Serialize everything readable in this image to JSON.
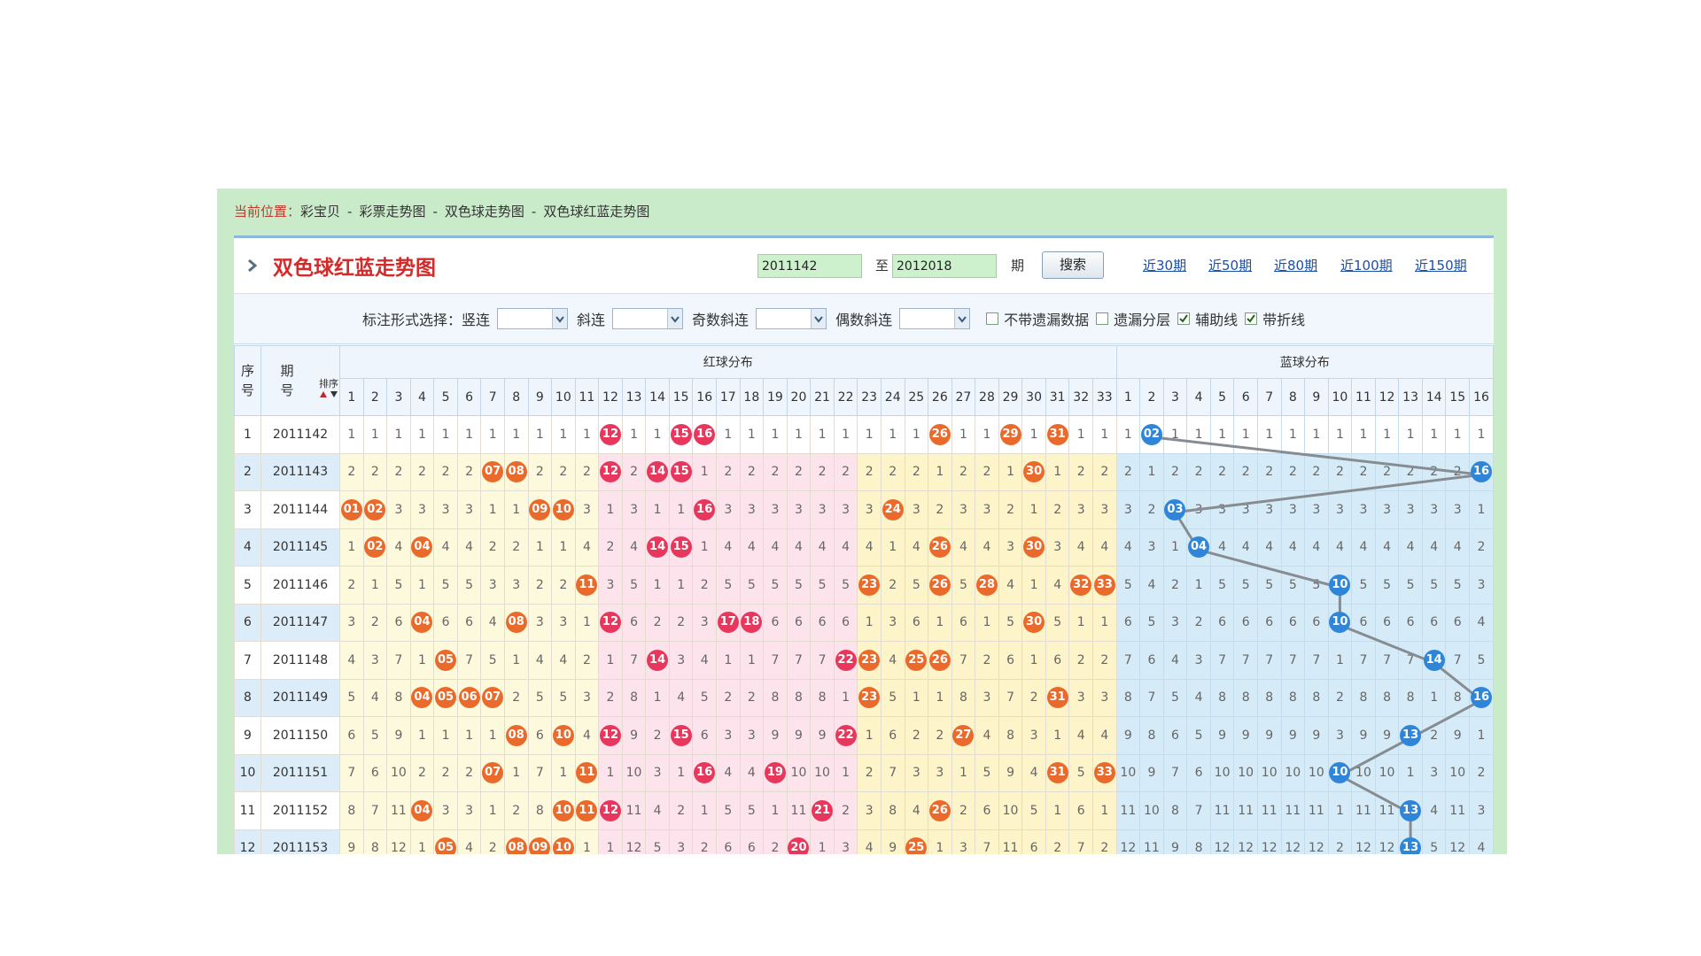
{
  "breadcrumb": {
    "label": "当前位置：",
    "separator": "-",
    "items": [
      "彩宝贝",
      "彩票走势图",
      "双色球走势图",
      "双色球红蓝走势图"
    ]
  },
  "header": {
    "title": "双色球红蓝走势图",
    "from": "2011142",
    "to_label": "至",
    "to": "2012018",
    "unit": "期",
    "search": "搜索",
    "ranges": [
      "近30期",
      "近50期",
      "近80期",
      "近100期",
      "近150期"
    ]
  },
  "filters": {
    "label": "标注形式选择：",
    "selects": [
      "竖连",
      "斜连",
      "奇数斜连",
      "偶数斜连"
    ],
    "checkboxes": [
      {
        "label": "不带遗漏数据",
        "checked": false
      },
      {
        "label": "遗漏分层",
        "checked": false
      },
      {
        "label": "辅助线",
        "checked": true
      },
      {
        "label": "带折线",
        "checked": true
      }
    ]
  },
  "table": {
    "seq_header": "序号",
    "issue_header": "期号",
    "sort": "排序",
    "red_header": "红球分布",
    "blue_header": "蓝球分布",
    "red_columns": [
      1,
      2,
      3,
      4,
      5,
      6,
      7,
      8,
      9,
      10,
      11,
      12,
      13,
      14,
      15,
      16,
      17,
      18,
      19,
      20,
      21,
      22,
      23,
      24,
      25,
      26,
      27,
      28,
      29,
      30,
      31,
      32,
      33
    ],
    "blue_columns": [
      1,
      2,
      3,
      4,
      5,
      6,
      7,
      8,
      9,
      10,
      11,
      12,
      13,
      14,
      15,
      16
    ],
    "rows": [
      {
        "seq": 1,
        "issue": "2011142",
        "red": [
          1,
          1,
          1,
          1,
          1,
          1,
          1,
          1,
          1,
          1,
          1,
          {
            "ball": "12"
          },
          1,
          1,
          {
            "ball": "15"
          },
          {
            "ball": "16"
          },
          1,
          1,
          1,
          1,
          1,
          1,
          1,
          1,
          1,
          {
            "ball": "26"
          },
          1,
          1,
          {
            "ball": "29"
          },
          1,
          {
            "ball": "31"
          },
          1,
          1
        ],
        "blue": [
          1,
          {
            "ball": "02"
          },
          1,
          1,
          1,
          1,
          1,
          1,
          1,
          1,
          1,
          1,
          1,
          1,
          1,
          1
        ]
      },
      {
        "seq": 2,
        "issue": "2011143",
        "red": [
          2,
          2,
          2,
          2,
          2,
          2,
          {
            "ball": "07"
          },
          {
            "ball": "08"
          },
          2,
          2,
          2,
          {
            "ball": "12"
          },
          2,
          {
            "ball": "14"
          },
          {
            "ball": "15"
          },
          1,
          2,
          2,
          2,
          2,
          2,
          2,
          2,
          2,
          2,
          1,
          2,
          2,
          1,
          {
            "ball": "30"
          },
          1,
          2,
          2
        ],
        "blue": [
          2,
          1,
          2,
          2,
          2,
          2,
          2,
          2,
          2,
          2,
          2,
          2,
          2,
          2,
          2,
          {
            "ball": "16"
          }
        ]
      },
      {
        "seq": 3,
        "issue": "2011144",
        "red": [
          {
            "ball": "01"
          },
          {
            "ball": "02"
          },
          3,
          3,
          3,
          3,
          1,
          1,
          {
            "ball": "09"
          },
          {
            "ball": "10"
          },
          3,
          1,
          3,
          1,
          1,
          {
            "ball": "16"
          },
          3,
          3,
          3,
          3,
          3,
          3,
          3,
          {
            "ball": "24"
          },
          3,
          2,
          3,
          3,
          2,
          1,
          2,
          3,
          3
        ],
        "blue": [
          3,
          2,
          {
            "ball": "03"
          },
          3,
          3,
          3,
          3,
          3,
          3,
          3,
          3,
          3,
          3,
          3,
          3,
          1
        ]
      },
      {
        "seq": 4,
        "issue": "2011145",
        "red": [
          1,
          {
            "ball": "02"
          },
          4,
          {
            "ball": "04"
          },
          4,
          4,
          2,
          2,
          1,
          1,
          4,
          2,
          4,
          {
            "ball": "14"
          },
          {
            "ball": "15"
          },
          1,
          4,
          4,
          4,
          4,
          4,
          4,
          4,
          1,
          4,
          {
            "ball": "26"
          },
          4,
          4,
          3,
          {
            "ball": "30"
          },
          3,
          4,
          4
        ],
        "blue": [
          4,
          3,
          1,
          {
            "ball": "04"
          },
          4,
          4,
          4,
          4,
          4,
          4,
          4,
          4,
          4,
          4,
          4,
          2
        ]
      },
      {
        "seq": 5,
        "issue": "2011146",
        "red": [
          2,
          1,
          5,
          1,
          5,
          5,
          3,
          3,
          2,
          2,
          {
            "ball": "11"
          },
          3,
          5,
          1,
          1,
          2,
          5,
          5,
          5,
          5,
          5,
          5,
          {
            "ball": "23"
          },
          2,
          5,
          {
            "ball": "26"
          },
          5,
          {
            "ball": "28"
          },
          4,
          1,
          4,
          {
            "ball": "32"
          },
          {
            "ball": "33"
          }
        ],
        "blue": [
          5,
          4,
          2,
          1,
          5,
          5,
          5,
          5,
          5,
          {
            "ball": "10"
          },
          5,
          5,
          5,
          5,
          5,
          3
        ]
      },
      {
        "seq": 6,
        "issue": "2011147",
        "red": [
          3,
          2,
          6,
          {
            "ball": "04"
          },
          6,
          6,
          4,
          {
            "ball": "08"
          },
          3,
          3,
          1,
          {
            "ball": "12"
          },
          6,
          2,
          2,
          3,
          {
            "ball": "17"
          },
          {
            "ball": "18"
          },
          6,
          6,
          6,
          6,
          1,
          3,
          6,
          1,
          6,
          1,
          5,
          {
            "ball": "30"
          },
          5,
          1,
          1
        ],
        "blue": [
          6,
          5,
          3,
          2,
          6,
          6,
          6,
          6,
          6,
          {
            "ball": "10"
          },
          6,
          6,
          6,
          6,
          6,
          4
        ]
      },
      {
        "seq": 7,
        "issue": "2011148",
        "red": [
          4,
          3,
          7,
          1,
          {
            "ball": "05"
          },
          7,
          5,
          1,
          4,
          4,
          2,
          1,
          7,
          {
            "ball": "14"
          },
          3,
          4,
          1,
          1,
          7,
          7,
          7,
          {
            "ball": "22"
          },
          {
            "ball": "23"
          },
          4,
          {
            "ball": "25"
          },
          {
            "ball": "26"
          },
          7,
          2,
          6,
          1,
          6,
          2,
          2
        ],
        "blue": [
          7,
          6,
          4,
          3,
          7,
          7,
          7,
          7,
          7,
          1,
          7,
          7,
          7,
          {
            "ball": "14"
          },
          7,
          5
        ]
      },
      {
        "seq": 8,
        "issue": "2011149",
        "red": [
          5,
          4,
          8,
          {
            "ball": "04"
          },
          {
            "ball": "05"
          },
          {
            "ball": "06"
          },
          {
            "ball": "07"
          },
          2,
          5,
          5,
          3,
          2,
          8,
          1,
          4,
          5,
          2,
          2,
          8,
          8,
          8,
          1,
          {
            "ball": "23"
          },
          5,
          1,
          1,
          8,
          3,
          7,
          2,
          {
            "ball": "31"
          },
          3,
          3
        ],
        "blue": [
          8,
          7,
          5,
          4,
          8,
          8,
          8,
          8,
          8,
          2,
          8,
          8,
          8,
          1,
          8,
          {
            "ball": "16"
          }
        ]
      },
      {
        "seq": 9,
        "issue": "2011150",
        "red": [
          6,
          5,
          9,
          1,
          1,
          1,
          1,
          {
            "ball": "08"
          },
          6,
          {
            "ball": "10"
          },
          4,
          {
            "ball": "12"
          },
          9,
          2,
          {
            "ball": "15"
          },
          6,
          3,
          3,
          9,
          9,
          9,
          {
            "ball": "22"
          },
          1,
          6,
          2,
          2,
          {
            "ball": "27"
          },
          4,
          8,
          3,
          1,
          4,
          4
        ],
        "blue": [
          9,
          8,
          6,
          5,
          9,
          9,
          9,
          9,
          9,
          3,
          9,
          9,
          {
            "ball": "13"
          },
          2,
          9,
          1
        ]
      },
      {
        "seq": 10,
        "issue": "2011151",
        "red": [
          7,
          6,
          10,
          2,
          2,
          2,
          {
            "ball": "07"
          },
          1,
          7,
          1,
          {
            "ball": "11"
          },
          1,
          10,
          3,
          1,
          {
            "ball": "16"
          },
          4,
          4,
          {
            "ball": "19"
          },
          10,
          10,
          1,
          2,
          7,
          3,
          3,
          1,
          5,
          9,
          4,
          {
            "ball": "31"
          },
          5,
          {
            "ball": "33"
          }
        ],
        "blue": [
          10,
          9,
          7,
          6,
          10,
          10,
          10,
          10,
          10,
          {
            "ball": "10"
          },
          10,
          10,
          1,
          3,
          10,
          2
        ]
      },
      {
        "seq": 11,
        "issue": "2011152",
        "red": [
          8,
          7,
          11,
          {
            "ball": "04"
          },
          3,
          3,
          1,
          2,
          8,
          {
            "ball": "10"
          },
          {
            "ball": "11"
          },
          {
            "ball": "12"
          },
          11,
          4,
          2,
          1,
          5,
          5,
          1,
          11,
          {
            "ball": "21"
          },
          2,
          3,
          8,
          4,
          {
            "ball": "26"
          },
          2,
          6,
          10,
          5,
          1,
          6,
          1
        ],
        "blue": [
          11,
          10,
          8,
          7,
          11,
          11,
          11,
          11,
          11,
          1,
          11,
          11,
          {
            "ball": "13"
          },
          4,
          11,
          3
        ]
      },
      {
        "seq": 12,
        "issue": "2011153",
        "red": [
          9,
          8,
          12,
          1,
          {
            "ball": "05"
          },
          4,
          2,
          {
            "ball": "08"
          },
          {
            "ball": "09"
          },
          {
            "ball": "10"
          },
          1,
          1,
          12,
          5,
          3,
          2,
          6,
          6,
          2,
          {
            "ball": "20"
          },
          1,
          3,
          4,
          9,
          {
            "ball": "25"
          },
          1,
          3,
          7,
          11,
          6,
          2,
          7,
          2
        ],
        "blue": [
          12,
          11,
          9,
          8,
          12,
          12,
          12,
          12,
          12,
          2,
          12,
          12,
          {
            "ball": "13"
          },
          5,
          12,
          4
        ]
      }
    ]
  }
}
